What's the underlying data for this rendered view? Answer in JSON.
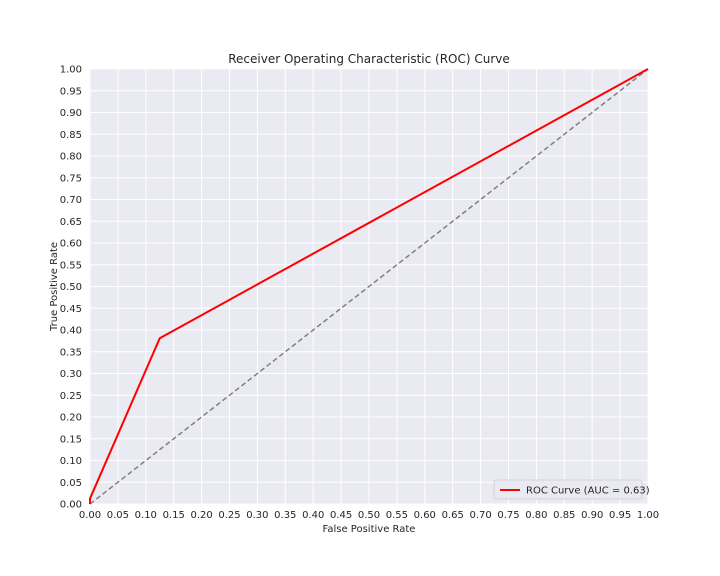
{
  "chart_data": {
    "type": "line",
    "title": "Receiver Operating Characteristic (ROC) Curve",
    "xlabel": "False Positive Rate",
    "ylabel": "True Positive Rate",
    "xlim": [
      0,
      1
    ],
    "ylim": [
      0,
      1
    ],
    "x_ticks": [
      "0.00",
      "0.05",
      "0.10",
      "0.15",
      "0.20",
      "0.25",
      "0.30",
      "0.35",
      "0.40",
      "0.45",
      "0.50",
      "0.55",
      "0.60",
      "0.65",
      "0.70",
      "0.75",
      "0.80",
      "0.85",
      "0.90",
      "0.95",
      "1.00"
    ],
    "y_ticks": [
      "0.00",
      "0.05",
      "0.10",
      "0.15",
      "0.20",
      "0.25",
      "0.30",
      "0.35",
      "0.40",
      "0.45",
      "0.50",
      "0.55",
      "0.60",
      "0.65",
      "0.70",
      "0.75",
      "0.80",
      "0.85",
      "0.90",
      "0.95",
      "1.00"
    ],
    "grid": true,
    "legend_position": "lower right",
    "series": [
      {
        "name": "ROC Curve (AUC = 0.63)",
        "color": "#ff0000",
        "line_style": "solid",
        "x": [
          0.0,
          0.0,
          0.125,
          1.0
        ],
        "y": [
          0.0,
          0.0125,
          0.381,
          1.0
        ]
      },
      {
        "color": "#808080",
        "line_style": "dashed",
        "x": [
          0.0,
          1.0
        ],
        "y": [
          0.0,
          1.0
        ]
      }
    ],
    "colors": {
      "plot_background": "#eaeaf2",
      "grid": "#ffffff",
      "text": "#262626"
    }
  }
}
